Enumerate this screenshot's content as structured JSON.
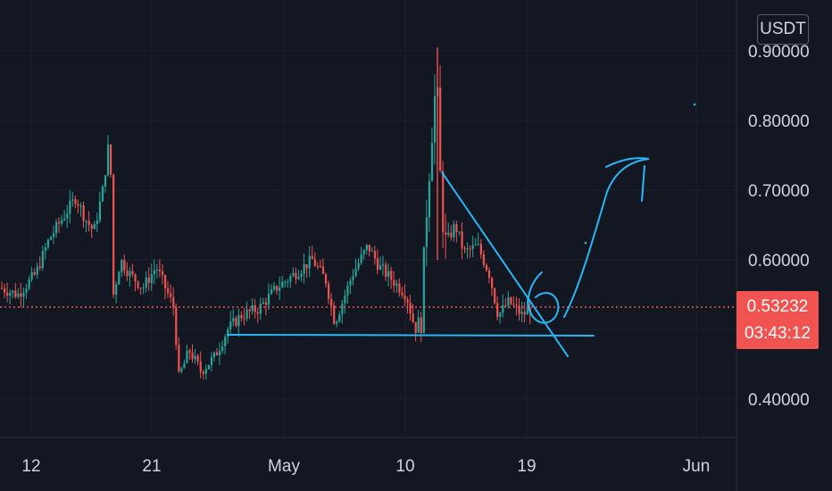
{
  "currency_button": "USDT",
  "current_price": {
    "value": "0.53232",
    "countdown": "03:43:12",
    "color": "#f05350"
  },
  "colors": {
    "background": "#131722",
    "up": "#26a69a",
    "down": "#ef5350",
    "drawing": "#29b6f6",
    "grid": "#1e2230"
  },
  "chart_data": {
    "type": "candlestick",
    "title": "",
    "xlabel": "",
    "ylabel": "",
    "y_ticks": [
      "0.40000",
      "0.50000",
      "0.60000",
      "0.70000",
      "0.80000",
      "0.90000"
    ],
    "x_ticks": [
      "12",
      "21",
      "May",
      "10",
      "19",
      "Jun"
    ],
    "ylim": [
      0.36,
      0.93
    ],
    "grid": true,
    "candles_approx": [
      {
        "date": "Apr 9",
        "close": 0.56
      },
      {
        "date": "Apr 11",
        "close": 0.58
      },
      {
        "date": "Apr 13",
        "close": 0.64
      },
      {
        "date": "Apr 14",
        "close": 0.69
      },
      {
        "date": "Apr 15",
        "close": 0.67
      },
      {
        "date": "Apr 17",
        "close": 0.75
      },
      {
        "date": "Apr 18",
        "close": 0.53
      },
      {
        "date": "Apr 20",
        "close": 0.58
      },
      {
        "date": "Apr 22",
        "close": 0.55
      },
      {
        "date": "Apr 24",
        "close": 0.43
      },
      {
        "date": "Apr 26",
        "close": 0.45
      },
      {
        "date": "Apr 28",
        "close": 0.51
      },
      {
        "date": "Apr 30",
        "close": 0.55
      },
      {
        "date": "May 2",
        "close": 0.58
      },
      {
        "date": "May 4",
        "close": 0.6
      },
      {
        "date": "May 6",
        "close": 0.53
      },
      {
        "date": "May 8",
        "close": 0.6
      },
      {
        "date": "May 9",
        "close": 0.55
      },
      {
        "date": "May 10",
        "close": 0.52
      },
      {
        "date": "May 11",
        "close": 0.86
      },
      {
        "date": "May 12",
        "close": 0.64
      },
      {
        "date": "May 14",
        "close": 0.62
      },
      {
        "date": "May 16",
        "close": 0.59
      },
      {
        "date": "May 18",
        "close": 0.53
      },
      {
        "date": "May 20",
        "close": 0.532
      }
    ],
    "annotations": [
      "support line",
      "descending trendline",
      "hand-drawn upward arrow"
    ]
  }
}
